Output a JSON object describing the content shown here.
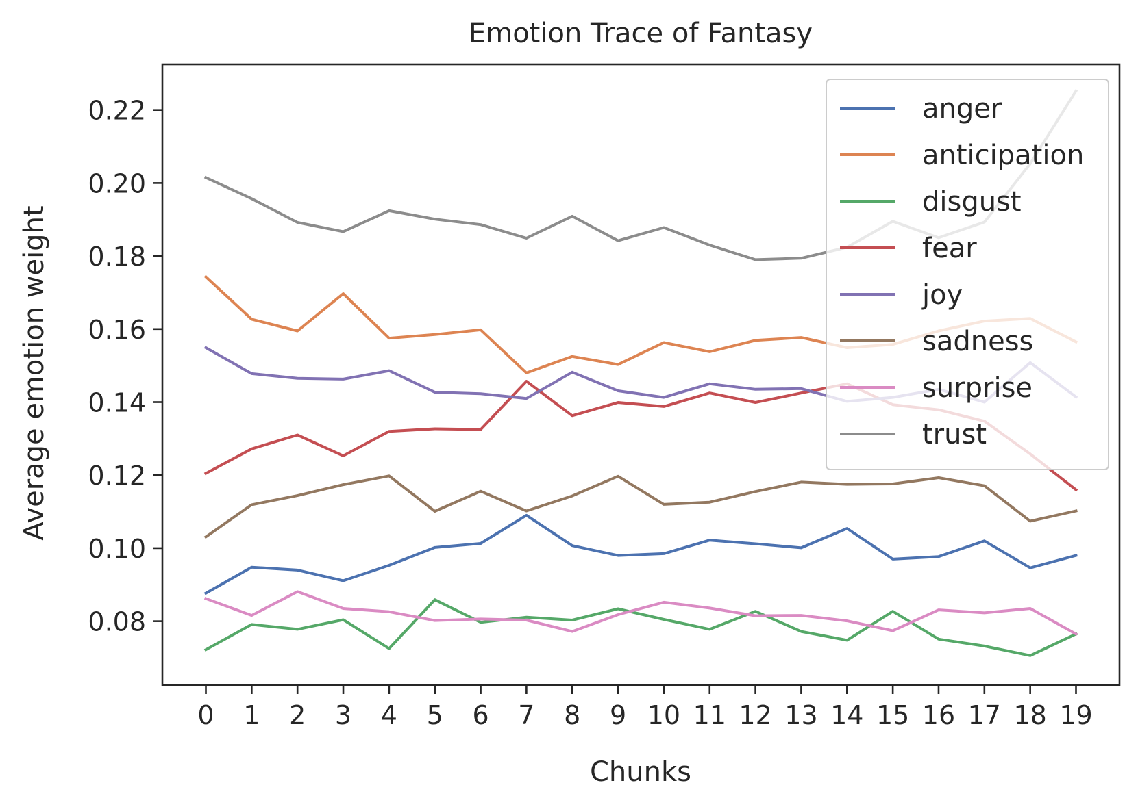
{
  "chart_data": {
    "type": "line",
    "title": "Emotion Trace of Fantasy",
    "xlabel": "Chunks",
    "ylabel": "Average emotion weight",
    "x": [
      0,
      1,
      2,
      3,
      4,
      5,
      6,
      7,
      8,
      9,
      10,
      11,
      12,
      13,
      14,
      15,
      16,
      17,
      18,
      19
    ],
    "xlim": [
      -0.95,
      19.95
    ],
    "ylim": [
      0.0625,
      0.2325
    ],
    "yticks": [
      0.08,
      0.1,
      0.12,
      0.14,
      0.16,
      0.18,
      0.2,
      0.22
    ],
    "ytick_labels": [
      "0.08",
      "0.10",
      "0.12",
      "0.14",
      "0.16",
      "0.18",
      "0.20",
      "0.22"
    ],
    "grid": false,
    "legend_position": "top-right",
    "series": [
      {
        "name": "anger",
        "color": "#4c72b0",
        "values": [
          0.0877,
          0.0948,
          0.094,
          0.0911,
          0.0953,
          0.1002,
          0.1013,
          0.109,
          0.1007,
          0.098,
          0.0985,
          0.1022,
          0.1012,
          0.1001,
          0.1054,
          0.097,
          0.0977,
          0.102,
          0.0946,
          0.098
        ]
      },
      {
        "name": "anticipation",
        "color": "#dd8452",
        "values": [
          0.1743,
          0.1627,
          0.1595,
          0.1697,
          0.1575,
          0.1585,
          0.1598,
          0.148,
          0.1525,
          0.1503,
          0.1563,
          0.1538,
          0.1569,
          0.1577,
          0.1549,
          0.1558,
          0.1595,
          0.1622,
          0.1629,
          0.1565
        ]
      },
      {
        "name": "disgust",
        "color": "#55a868",
        "values": [
          0.0722,
          0.0791,
          0.0778,
          0.0804,
          0.0725,
          0.0859,
          0.0797,
          0.0811,
          0.0803,
          0.0834,
          0.0805,
          0.0778,
          0.0827,
          0.0772,
          0.0748,
          0.0827,
          0.0751,
          0.0732,
          0.0706,
          0.0765
        ]
      },
      {
        "name": "fear",
        "color": "#c44e52",
        "values": [
          0.1205,
          0.1272,
          0.131,
          0.1253,
          0.132,
          0.1327,
          0.1325,
          0.1457,
          0.1363,
          0.1399,
          0.1388,
          0.1425,
          0.1399,
          0.1425,
          0.145,
          0.1393,
          0.1379,
          0.1348,
          0.1258,
          0.116
        ]
      },
      {
        "name": "joy",
        "color": "#8172b3",
        "values": [
          0.1549,
          0.1478,
          0.1465,
          0.1463,
          0.1486,
          0.1427,
          0.1423,
          0.141,
          0.1482,
          0.1431,
          0.1413,
          0.145,
          0.1435,
          0.1437,
          0.1402,
          0.1413,
          0.1435,
          0.14,
          0.1508,
          0.1414
        ]
      },
      {
        "name": "sadness",
        "color": "#937860",
        "values": [
          0.1031,
          0.1119,
          0.1144,
          0.1174,
          0.1198,
          0.1101,
          0.1156,
          0.1102,
          0.1143,
          0.1197,
          0.112,
          0.1126,
          0.1155,
          0.1181,
          0.1175,
          0.1176,
          0.1193,
          0.1171,
          0.1074,
          0.1102
        ]
      },
      {
        "name": "surprise",
        "color": "#da8bc3",
        "values": [
          0.0862,
          0.0816,
          0.0881,
          0.0835,
          0.0826,
          0.0802,
          0.0806,
          0.0803,
          0.0772,
          0.0818,
          0.0852,
          0.0836,
          0.0815,
          0.0816,
          0.0801,
          0.0774,
          0.0831,
          0.0823,
          0.0835,
          0.0765
        ]
      },
      {
        "name": "trust",
        "color": "#8c8c8c",
        "values": [
          0.2015,
          0.1957,
          0.1892,
          0.1867,
          0.1924,
          0.1901,
          0.1886,
          0.1849,
          0.1909,
          0.1842,
          0.1878,
          0.183,
          0.179,
          0.1794,
          0.1824,
          0.1895,
          0.185,
          0.1893,
          0.2053,
          0.2252
        ]
      }
    ]
  }
}
